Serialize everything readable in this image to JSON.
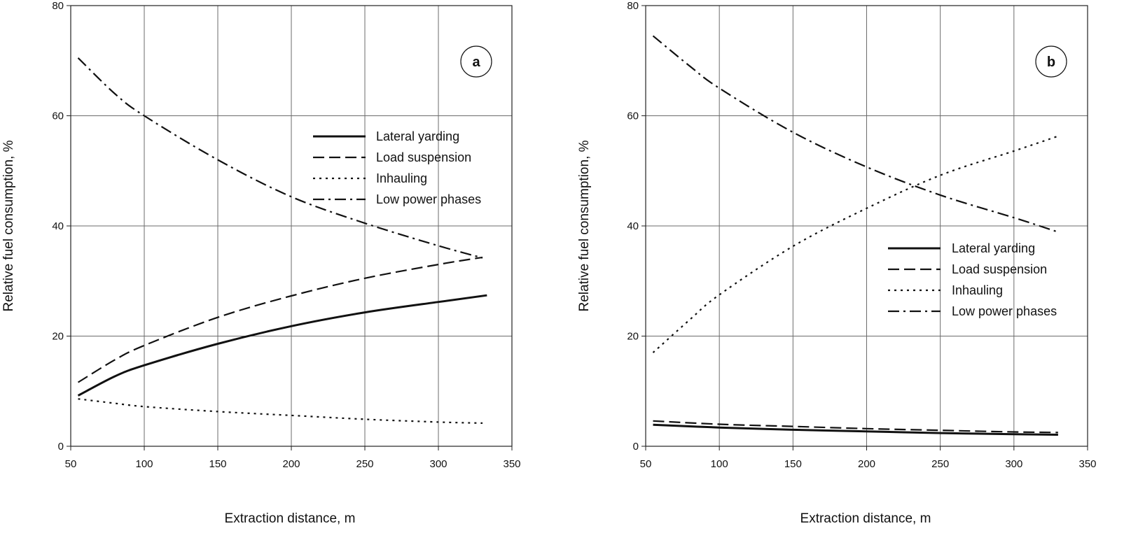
{
  "chart_data": [
    {
      "type": "line",
      "panel_label": "a",
      "xlabel": "Extraction distance, m",
      "ylabel": "Relative fuel consumption, %",
      "xlim": [
        50,
        350
      ],
      "ylim": [
        0,
        80
      ],
      "xticks": [
        "50",
        "100",
        "150",
        "200",
        "250",
        "300",
        "350"
      ],
      "yticks": [
        "0",
        "20",
        "40",
        "60",
        "80"
      ],
      "grid": true,
      "legend_position": "upper-right",
      "series": [
        {
          "name": "Lateral yarding",
          "style": "solid",
          "x": [
            55,
            80,
            100,
            150,
            200,
            250,
            300,
            333
          ],
          "values": [
            9.2,
            12.7,
            14.7,
            18.6,
            21.8,
            24.3,
            26.2,
            27.4
          ]
        },
        {
          "name": "Load suspension",
          "style": "dashed",
          "x": [
            55,
            80,
            100,
            150,
            200,
            250,
            300,
            330
          ],
          "values": [
            11.6,
            15.7,
            18.3,
            23.4,
            27.3,
            30.5,
            33.0,
            34.3
          ]
        },
        {
          "name": "Inhauling",
          "style": "dotted",
          "x": [
            55,
            80,
            100,
            150,
            200,
            250,
            300,
            330
          ],
          "values": [
            8.6,
            7.8,
            7.2,
            6.3,
            5.6,
            4.9,
            4.4,
            4.2
          ]
        },
        {
          "name": "Low power phases",
          "style": "dashdot",
          "x": [
            55,
            80,
            100,
            150,
            200,
            250,
            300,
            330
          ],
          "values": [
            70.5,
            64.0,
            60.0,
            52.0,
            45.3,
            40.5,
            36.4,
            34.2
          ]
        }
      ]
    },
    {
      "type": "line",
      "panel_label": "b",
      "xlabel": "Extraction distance, m",
      "ylabel": "Relative fuel consumption, %",
      "xlim": [
        50,
        350
      ],
      "ylim": [
        0,
        80
      ],
      "xticks": [
        "50",
        "100",
        "150",
        "200",
        "250",
        "300",
        "350"
      ],
      "yticks": [
        "0",
        "20",
        "40",
        "60",
        "80"
      ],
      "grid": true,
      "legend_position": "center-right",
      "series": [
        {
          "name": "Lateral yarding",
          "style": "solid",
          "x": [
            55,
            100,
            150,
            200,
            250,
            300,
            330
          ],
          "values": [
            3.9,
            3.4,
            3.0,
            2.7,
            2.4,
            2.2,
            2.1
          ]
        },
        {
          "name": "Load suspension",
          "style": "dashed",
          "x": [
            55,
            100,
            150,
            200,
            250,
            300,
            330
          ],
          "values": [
            4.6,
            4.0,
            3.6,
            3.2,
            2.9,
            2.6,
            2.5
          ]
        },
        {
          "name": "Inhauling",
          "style": "dotted",
          "x": [
            55,
            80,
            100,
            150,
            200,
            250,
            300,
            330
          ],
          "values": [
            17.0,
            23.0,
            27.5,
            36.3,
            43.2,
            49.2,
            53.6,
            56.3
          ]
        },
        {
          "name": "Low power phases",
          "style": "dashdot",
          "x": [
            55,
            80,
            100,
            150,
            200,
            250,
            300,
            330
          ],
          "values": [
            74.5,
            69.0,
            65.0,
            57.0,
            50.7,
            45.6,
            41.5,
            38.9
          ]
        }
      ]
    }
  ]
}
